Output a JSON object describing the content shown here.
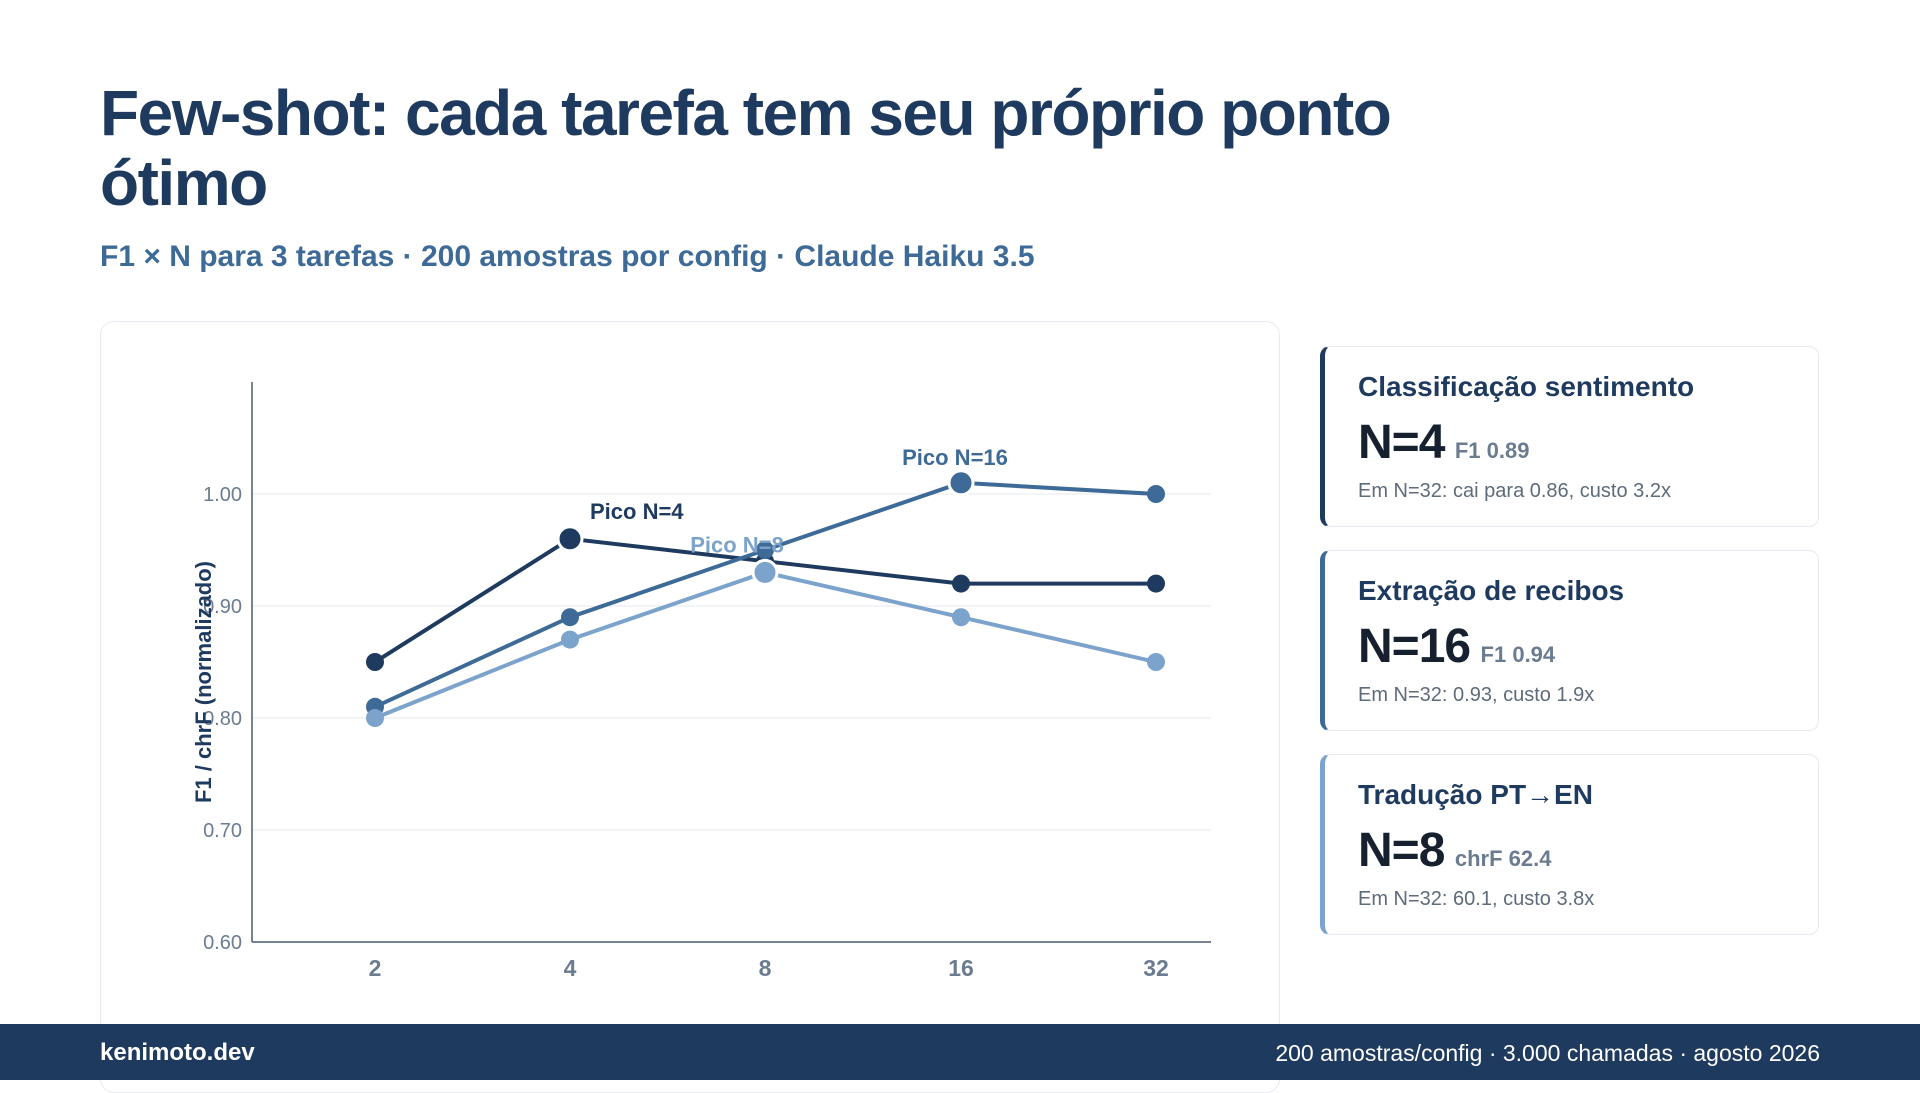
{
  "header": {
    "title": "Few-shot: cada tarefa tem seu próprio ponto ótimo",
    "subtitle": "F1 × N para 3 tarefas · 200 amostras por config · Claude Haiku 3.5"
  },
  "chart_data": {
    "type": "line",
    "title": "",
    "xlabel": "",
    "ylabel": "F1 / chrF (normalizado)",
    "categories": [
      "2",
      "4",
      "8",
      "16",
      "32"
    ],
    "ylim": [
      0.6,
      1.1
    ],
    "yticks": [
      "0.60",
      "0.70",
      "0.80",
      "0.90",
      "1.00"
    ],
    "ytick_values": [
      0.6,
      0.7,
      0.8,
      0.9,
      1.0
    ],
    "grid": true,
    "series": [
      {
        "values": [
          0.85,
          0.96,
          0.94,
          0.92,
          0.92
        ],
        "color": "#1f3a5f",
        "peak_index": 1,
        "peak_label": "Pico N=4"
      },
      {
        "values": [
          0.81,
          0.89,
          0.95,
          1.01,
          1.0
        ],
        "color": "#3d6a97",
        "peak_index": 3,
        "peak_label": "Pico N=16"
      },
      {
        "values": [
          0.8,
          0.87,
          0.93,
          0.89,
          0.85
        ],
        "color": "#7ba3cc",
        "peak_index": 2,
        "peak_label": "Pico N=8"
      }
    ]
  },
  "insights": [
    {
      "title": "Classificação sentimento",
      "value": "N=4",
      "metric": "F1 0.89",
      "note": "Em N=32: cai para 0.86, custo 3.2x",
      "color": "#1f3a5f"
    },
    {
      "title": "Extração de recibos",
      "value": "N=16",
      "metric": "F1 0.94",
      "note": "Em N=32: 0.93, custo 1.9x",
      "color": "#3d6a97"
    },
    {
      "title": "Tradução PT→EN",
      "value": "N=8",
      "metric": "chrF 62.4",
      "note": "Em N=32: 60.1, custo 3.8x",
      "color": "#7ba3cc"
    }
  ],
  "footer": {
    "brand": "kenimoto.dev",
    "meta": "200 amostras/config · 3.000 chamadas · agosto 2026"
  }
}
